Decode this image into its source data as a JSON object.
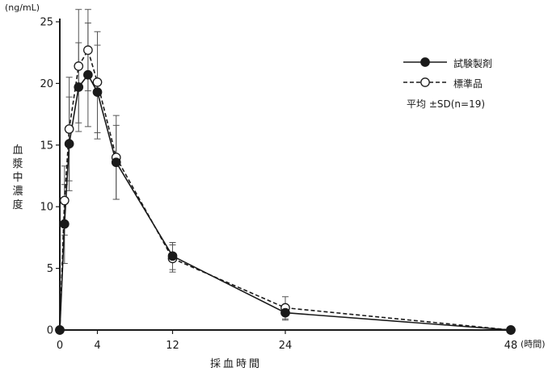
{
  "chart_data": {
    "type": "line",
    "ylabel": "血漿中濃度",
    "y_unit": "(ng/mL)",
    "xlabel": "採血時間",
    "x_unit": "(時間)",
    "xlim": [
      0,
      48
    ],
    "ylim": [
      0,
      25
    ],
    "x_ticks": [
      0,
      4,
      12,
      24,
      48
    ],
    "y_ticks": [
      0,
      5,
      10,
      15,
      20,
      25
    ],
    "grid": false,
    "legend_position": "top-right",
    "note": "平均 ±SD(n=19)",
    "series": [
      {
        "name": "試験製剤",
        "style": "solid",
        "marker": "filled-circle",
        "color": "#1a1a1a",
        "x": [
          0,
          0.5,
          1,
          2,
          3,
          4,
          6,
          12,
          24,
          48
        ],
        "y": [
          0,
          8.6,
          15.1,
          19.7,
          20.7,
          19.3,
          13.6,
          6.0,
          1.4,
          0
        ],
        "sd": [
          0,
          3.2,
          3.8,
          3.6,
          4.2,
          3.8,
          3.0,
          1.1,
          0.6,
          0
        ]
      },
      {
        "name": "標準品",
        "style": "dashed",
        "marker": "open-circle",
        "color": "#1a1a1a",
        "x": [
          0,
          0.5,
          1,
          2,
          3,
          4,
          6,
          12,
          24,
          48
        ],
        "y": [
          0,
          10.5,
          16.3,
          21.4,
          22.7,
          20.1,
          14.0,
          5.8,
          1.8,
          0
        ],
        "sd": [
          0,
          2.8,
          4.2,
          4.6,
          3.3,
          4.1,
          3.4,
          1.1,
          0.9,
          0
        ]
      }
    ]
  }
}
